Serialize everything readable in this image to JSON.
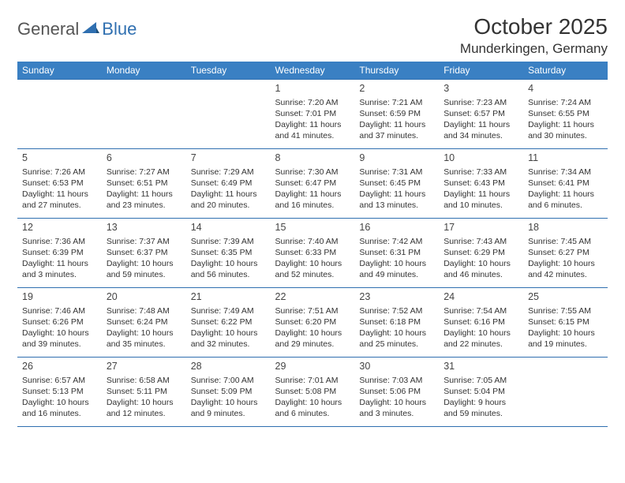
{
  "logo": {
    "text1": "General",
    "text2": "Blue",
    "icon_color": "#2f6fb0"
  },
  "header": {
    "title": "October 2025",
    "location": "Munderkingen, Germany"
  },
  "colors": {
    "header_bg": "#3a80c3",
    "header_text": "#ffffff",
    "border": "#2f6fb0",
    "body_text": "#333333",
    "background": "#ffffff"
  },
  "typography": {
    "title_fontsize": 28,
    "location_fontsize": 17,
    "dayheader_fontsize": 12,
    "cell_fontsize": 10.5,
    "daynum_fontsize": 12.5
  },
  "calendar": {
    "columns": [
      "Sunday",
      "Monday",
      "Tuesday",
      "Wednesday",
      "Thursday",
      "Friday",
      "Saturday"
    ],
    "weeks": [
      [
        null,
        null,
        null,
        {
          "n": "1",
          "sr": "7:20 AM",
          "ss": "7:01 PM",
          "dl": "11 hours and 41 minutes."
        },
        {
          "n": "2",
          "sr": "7:21 AM",
          "ss": "6:59 PM",
          "dl": "11 hours and 37 minutes."
        },
        {
          "n": "3",
          "sr": "7:23 AM",
          "ss": "6:57 PM",
          "dl": "11 hours and 34 minutes."
        },
        {
          "n": "4",
          "sr": "7:24 AM",
          "ss": "6:55 PM",
          "dl": "11 hours and 30 minutes."
        }
      ],
      [
        {
          "n": "5",
          "sr": "7:26 AM",
          "ss": "6:53 PM",
          "dl": "11 hours and 27 minutes."
        },
        {
          "n": "6",
          "sr": "7:27 AM",
          "ss": "6:51 PM",
          "dl": "11 hours and 23 minutes."
        },
        {
          "n": "7",
          "sr": "7:29 AM",
          "ss": "6:49 PM",
          "dl": "11 hours and 20 minutes."
        },
        {
          "n": "8",
          "sr": "7:30 AM",
          "ss": "6:47 PM",
          "dl": "11 hours and 16 minutes."
        },
        {
          "n": "9",
          "sr": "7:31 AM",
          "ss": "6:45 PM",
          "dl": "11 hours and 13 minutes."
        },
        {
          "n": "10",
          "sr": "7:33 AM",
          "ss": "6:43 PM",
          "dl": "11 hours and 10 minutes."
        },
        {
          "n": "11",
          "sr": "7:34 AM",
          "ss": "6:41 PM",
          "dl": "11 hours and 6 minutes."
        }
      ],
      [
        {
          "n": "12",
          "sr": "7:36 AM",
          "ss": "6:39 PM",
          "dl": "11 hours and 3 minutes."
        },
        {
          "n": "13",
          "sr": "7:37 AM",
          "ss": "6:37 PM",
          "dl": "10 hours and 59 minutes."
        },
        {
          "n": "14",
          "sr": "7:39 AM",
          "ss": "6:35 PM",
          "dl": "10 hours and 56 minutes."
        },
        {
          "n": "15",
          "sr": "7:40 AM",
          "ss": "6:33 PM",
          "dl": "10 hours and 52 minutes."
        },
        {
          "n": "16",
          "sr": "7:42 AM",
          "ss": "6:31 PM",
          "dl": "10 hours and 49 minutes."
        },
        {
          "n": "17",
          "sr": "7:43 AM",
          "ss": "6:29 PM",
          "dl": "10 hours and 46 minutes."
        },
        {
          "n": "18",
          "sr": "7:45 AM",
          "ss": "6:27 PM",
          "dl": "10 hours and 42 minutes."
        }
      ],
      [
        {
          "n": "19",
          "sr": "7:46 AM",
          "ss": "6:26 PM",
          "dl": "10 hours and 39 minutes."
        },
        {
          "n": "20",
          "sr": "7:48 AM",
          "ss": "6:24 PM",
          "dl": "10 hours and 35 minutes."
        },
        {
          "n": "21",
          "sr": "7:49 AM",
          "ss": "6:22 PM",
          "dl": "10 hours and 32 minutes."
        },
        {
          "n": "22",
          "sr": "7:51 AM",
          "ss": "6:20 PM",
          "dl": "10 hours and 29 minutes."
        },
        {
          "n": "23",
          "sr": "7:52 AM",
          "ss": "6:18 PM",
          "dl": "10 hours and 25 minutes."
        },
        {
          "n": "24",
          "sr": "7:54 AM",
          "ss": "6:16 PM",
          "dl": "10 hours and 22 minutes."
        },
        {
          "n": "25",
          "sr": "7:55 AM",
          "ss": "6:15 PM",
          "dl": "10 hours and 19 minutes."
        }
      ],
      [
        {
          "n": "26",
          "sr": "6:57 AM",
          "ss": "5:13 PM",
          "dl": "10 hours and 16 minutes."
        },
        {
          "n": "27",
          "sr": "6:58 AM",
          "ss": "5:11 PM",
          "dl": "10 hours and 12 minutes."
        },
        {
          "n": "28",
          "sr": "7:00 AM",
          "ss": "5:09 PM",
          "dl": "10 hours and 9 minutes."
        },
        {
          "n": "29",
          "sr": "7:01 AM",
          "ss": "5:08 PM",
          "dl": "10 hours and 6 minutes."
        },
        {
          "n": "30",
          "sr": "7:03 AM",
          "ss": "5:06 PM",
          "dl": "10 hours and 3 minutes."
        },
        {
          "n": "31",
          "sr": "7:05 AM",
          "ss": "5:04 PM",
          "dl": "9 hours and 59 minutes."
        },
        null
      ]
    ],
    "labels": {
      "sunrise": "Sunrise:",
      "sunset": "Sunset:",
      "daylight": "Daylight:"
    }
  }
}
